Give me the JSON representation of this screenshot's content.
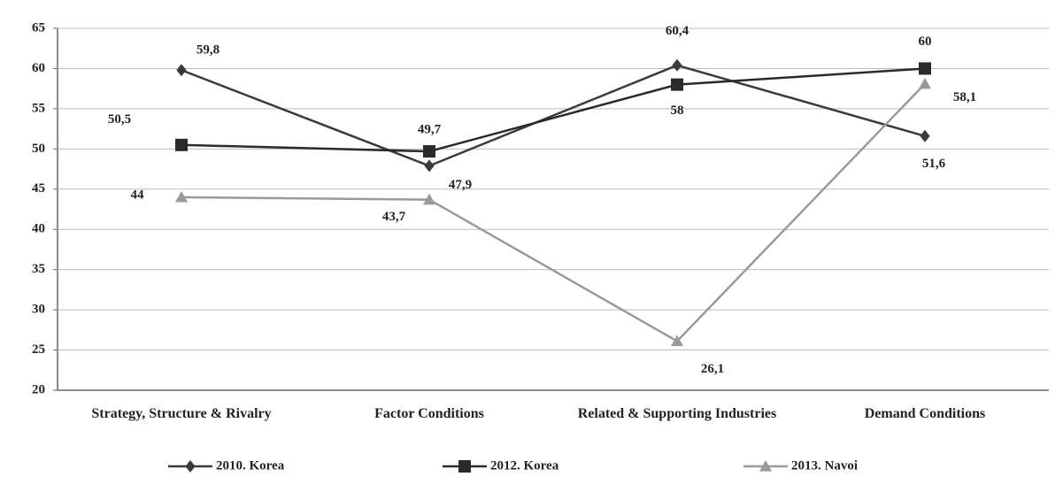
{
  "chart_data": {
    "type": "line",
    "categories": [
      "Strategy, Structure & Rivalry",
      "Factor Conditions",
      "Related & Supporting Industries",
      "Demand Conditions"
    ],
    "series": [
      {
        "name": "2010. Korea",
        "color": "#3a3a3a",
        "marker": "diamond",
        "values": [
          59.8,
          47.9,
          60.4,
          51.6
        ],
        "value_labels": [
          "59,8",
          "47,9",
          "60,4",
          "51,6"
        ]
      },
      {
        "name": "2012. Korea",
        "color": "#2a2a2a",
        "marker": "square",
        "values": [
          50.5,
          49.7,
          58,
          60
        ],
        "value_labels": [
          "50,5",
          "49,7",
          "58",
          "60"
        ]
      },
      {
        "name": "2013. Navoi",
        "color": "#9a9a9a",
        "marker": "triangle",
        "values": [
          44,
          43.7,
          26.1,
          58.1
        ],
        "value_labels": [
          "44",
          "43,7",
          "26,1",
          "58,1"
        ]
      }
    ],
    "ylim": [
      20,
      65
    ],
    "yticks": [
      20,
      25,
      30,
      35,
      40,
      45,
      50,
      55,
      60,
      65
    ],
    "grid": true,
    "legend": "bottom"
  }
}
